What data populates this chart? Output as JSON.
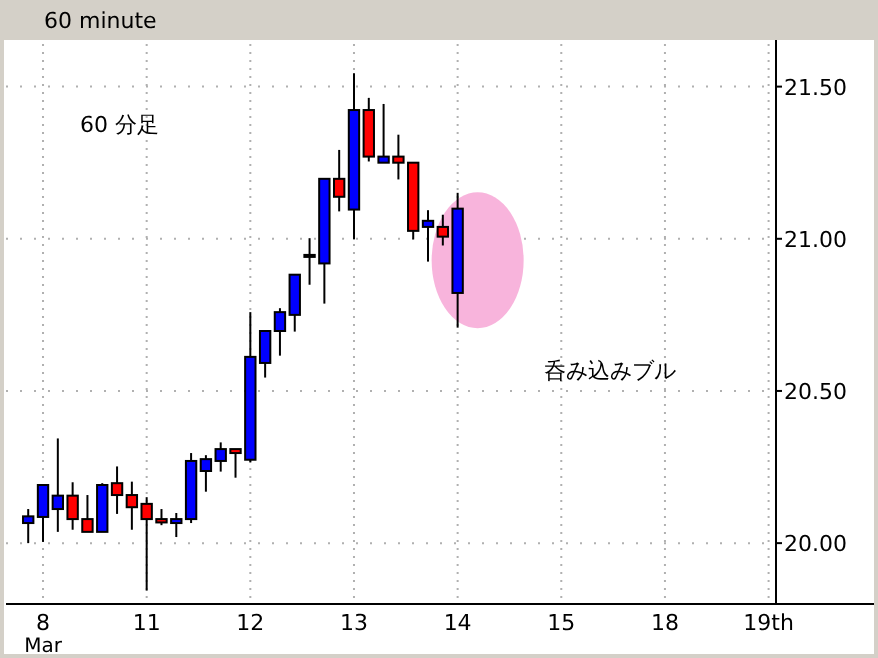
{
  "chart_data": {
    "type": "candlestick",
    "title": "60 minute",
    "annotations": [
      "60 分足",
      "呑み込みブル",
      "Mar"
    ],
    "categories": [
      null,
      "8",
      null,
      null,
      null,
      null,
      null,
      null,
      "11",
      null,
      null,
      null,
      null,
      null,
      null,
      "12",
      null,
      null,
      null,
      null,
      null,
      null,
      "13",
      null,
      null,
      null,
      null,
      null,
      null,
      "14",
      null,
      null,
      null,
      null,
      null,
      null,
      "15",
      null,
      null,
      null,
      null,
      null,
      null,
      "18",
      null,
      null,
      null,
      null,
      null,
      null,
      "19th"
    ],
    "ohlc": [
      [
        20.066,
        20.112,
        20.0,
        20.088
      ],
      [
        20.086,
        20.191,
        20.004,
        20.191
      ],
      [
        20.112,
        20.344,
        20.037,
        20.156
      ],
      [
        20.156,
        20.2,
        20.044,
        20.079
      ],
      [
        20.079,
        20.158,
        20.037,
        20.037
      ],
      [
        20.037,
        20.197,
        20.037,
        20.191
      ],
      [
        20.197,
        20.252,
        20.096,
        20.158
      ],
      [
        20.158,
        20.202,
        20.044,
        20.118
      ],
      [
        20.129,
        20.151,
        19.844,
        20.079
      ],
      [
        20.079,
        20.112,
        20.059,
        20.068
      ],
      [
        20.066,
        20.099,
        20.02,
        20.079
      ],
      [
        20.079,
        20.296,
        20.066,
        20.27
      ],
      [
        20.237,
        20.289,
        20.169,
        20.276
      ],
      [
        20.27,
        20.331,
        20.235,
        20.309
      ],
      [
        20.309,
        20.309,
        20.215,
        20.296
      ],
      [
        20.274,
        20.759,
        20.265,
        20.612
      ],
      [
        20.592,
        20.697,
        20.544,
        20.697
      ],
      [
        20.697,
        20.772,
        20.616,
        20.759
      ],
      [
        20.75,
        20.882,
        20.695,
        20.882
      ],
      [
        20.941,
        21.002,
        20.849,
        20.947
      ],
      [
        20.919,
        21.197,
        20.787,
        21.197
      ],
      [
        21.197,
        21.292,
        21.09,
        21.138
      ],
      [
        21.096,
        21.544,
        20.998,
        21.423
      ],
      [
        21.423,
        21.463,
        21.254,
        21.27
      ],
      [
        21.25,
        21.443,
        21.25,
        21.27
      ],
      [
        21.27,
        21.342,
        21.195,
        21.25
      ],
      [
        21.25,
        21.25,
        20.998,
        21.026
      ],
      [
        21.039,
        21.094,
        20.925,
        21.059
      ],
      [
        21.039,
        21.079,
        20.978,
        21.007
      ],
      [
        20.822,
        21.151,
        20.708,
        21.099
      ],
      null,
      null,
      null,
      null,
      null,
      null,
      null,
      null,
      null,
      null,
      null,
      null,
      null,
      null,
      null,
      null,
      null,
      null,
      null,
      null,
      null
    ],
    "colors": [
      "#0000ff",
      "#0000ff",
      "#0000ff",
      "#ff0000",
      "#ff0000",
      "#0000ff",
      "#ff0000",
      "#ff0000",
      "#ff0000",
      "#ff0000",
      "#0000ff",
      "#0000ff",
      "#0000ff",
      "#0000ff",
      "#ff0000",
      "#0000ff",
      "#0000ff",
      "#0000ff",
      "#0000ff",
      "#0000ff",
      "#0000ff",
      "#ff0000",
      "#0000ff",
      "#ff0000",
      "#0000ff",
      "#ff0000",
      "#ff0000",
      "#0000ff",
      "#ff0000",
      "#0000ff",
      null,
      null,
      null,
      null,
      null,
      null,
      null,
      null,
      null,
      null,
      null,
      null,
      null,
      null,
      null,
      null,
      null,
      null,
      null,
      null,
      null
    ],
    "ylim": [
      19.8,
      21.64
    ],
    "yticks": [
      {
        "value": 20,
        "label": "20.00"
      },
      {
        "value": 20.5,
        "label": "20.50"
      },
      {
        "value": 21,
        "label": "21.00"
      },
      {
        "value": 21.5,
        "label": "21.50"
      }
    ],
    "grid": true
  }
}
